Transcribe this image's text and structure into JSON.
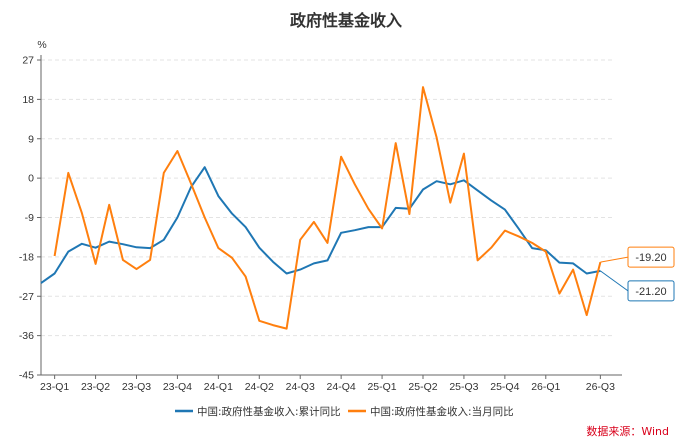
{
  "chart_data": {
    "type": "line",
    "title": "政府性基金收入",
    "ylabel": "%",
    "ylim": [
      -45,
      27
    ],
    "yticks": [
      27,
      18,
      9,
      0,
      -9,
      -18,
      -27,
      -36,
      -45
    ],
    "x_ticks": [
      "23-Q1",
      "23-Q2",
      "23-Q3",
      "23-Q4",
      "24-Q1",
      "24-Q2",
      "24-Q3",
      "24-Q4",
      "25-Q1",
      "25-Q2",
      "25-Q3",
      "25-Q4",
      "26-Q1",
      "26-Q3"
    ],
    "x_tick_positions": [
      0,
      3,
      6,
      9,
      12,
      15,
      18,
      21,
      24,
      27,
      30,
      33,
      36,
      40
    ],
    "grid": "horizontal dashed",
    "legend_position": "bottom",
    "series": [
      {
        "name": "中国:政府性基金收入:累计同比",
        "color": "#1f77b4",
        "x": [
          -1,
          0,
          1,
          2,
          3,
          4,
          5,
          6,
          7,
          8,
          9,
          10,
          11,
          12,
          13,
          14,
          15,
          16,
          17,
          18,
          19,
          20,
          21,
          22,
          23,
          24,
          25,
          26,
          27,
          28,
          29,
          30,
          31,
          32,
          33,
          34,
          35,
          36,
          37,
          38,
          39,
          40
        ],
        "values": [
          -24.0,
          -21.8,
          -16.8,
          -15.0,
          -15.9,
          -14.5,
          -15.1,
          -15.8,
          -16.0,
          -14.1,
          -9.0,
          -2.0,
          2.5,
          -4.1,
          -8.1,
          -11.2,
          -15.9,
          -19.1,
          -21.8,
          -20.9,
          -19.5,
          -18.8,
          -12.5,
          -11.9,
          -11.2,
          -11.2,
          -6.8,
          -7.0,
          -2.6,
          -0.7,
          -1.4,
          -0.5,
          -2.8,
          -5.1,
          -7.2,
          -11.5,
          -16.0,
          -16.5,
          -19.3,
          -19.5,
          -21.8,
          -21.2
        ],
        "end_label": "-21.20"
      },
      {
        "name": "中国:政府性基金收入:当月同比",
        "color": "#ff7f0e",
        "x": [
          0,
          1,
          2,
          3,
          4,
          5,
          6,
          7,
          8,
          9,
          10,
          11,
          12,
          13,
          14,
          15,
          16,
          17,
          18,
          19,
          20,
          21,
          22,
          23,
          24,
          25,
          26,
          27,
          28,
          29,
          30,
          31,
          32,
          33,
          34,
          35,
          36,
          37,
          38,
          39,
          40
        ],
        "values": [
          -17.8,
          1.2,
          -8.0,
          -19.6,
          -6.1,
          -18.7,
          -20.8,
          -18.7,
          1.2,
          6.2,
          -1.3,
          -9.0,
          -16.0,
          -18.2,
          -22.5,
          -32.6,
          -33.6,
          -34.4,
          -14.1,
          -10.0,
          -14.8,
          4.9,
          -1.4,
          -7.0,
          -11.5,
          8.0,
          -8.2,
          20.8,
          9.3,
          -5.6,
          5.6,
          -18.8,
          -15.9,
          -12.0,
          -13.3,
          -14.8,
          -16.8,
          -26.4,
          -20.9,
          -31.3,
          -19.2
        ],
        "end_label": "-19.20"
      }
    ]
  },
  "footer": {
    "source": "数据来源：Wind"
  }
}
